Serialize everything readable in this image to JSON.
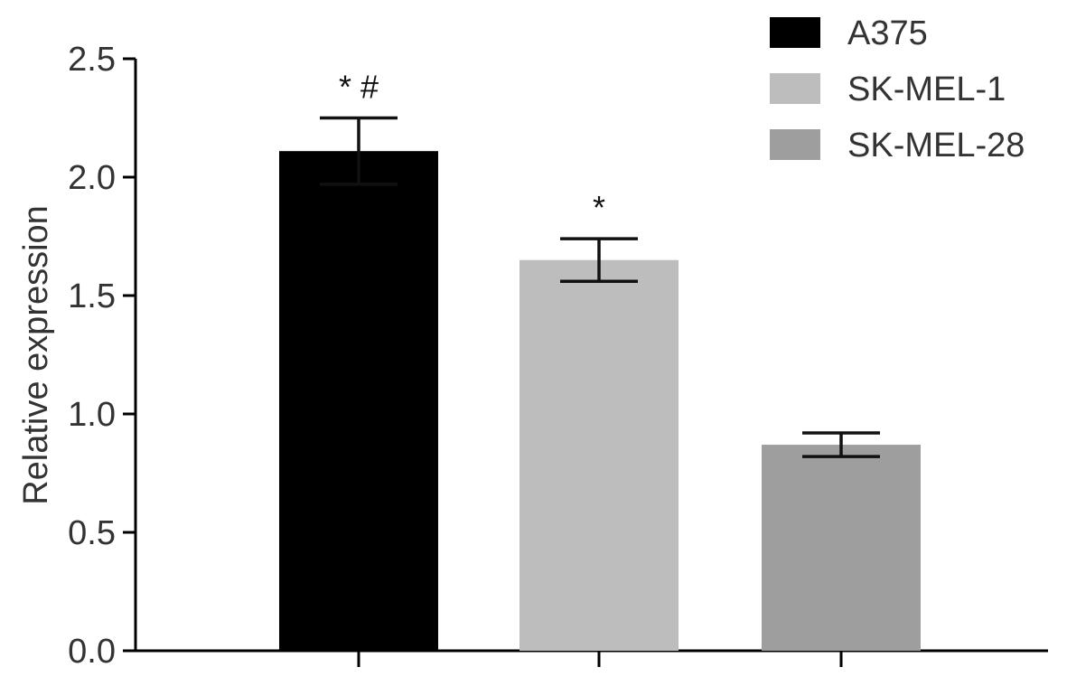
{
  "chart_data": {
    "type": "bar",
    "title": "",
    "xlabel": "",
    "ylabel": "Relative expression",
    "categories": [
      "A375",
      "SK-MEL-1",
      "SK-MEL-28"
    ],
    "values": [
      2.11,
      1.65,
      0.87
    ],
    "errors": [
      0.14,
      0.09,
      0.05
    ],
    "colors": [
      "#000000",
      "#bdbdbd",
      "#9e9e9e"
    ],
    "annotations": [
      "*#",
      "*",
      ""
    ],
    "ylim": [
      0,
      2.5
    ],
    "yticks": [
      "0.0",
      "0.5",
      "1.0",
      "1.5",
      "2.0",
      "2.5"
    ],
    "grid": false,
    "legend": {
      "position": "top-right",
      "entries": [
        "A375",
        "SK-MEL-1",
        "SK-MEL-28"
      ]
    }
  }
}
